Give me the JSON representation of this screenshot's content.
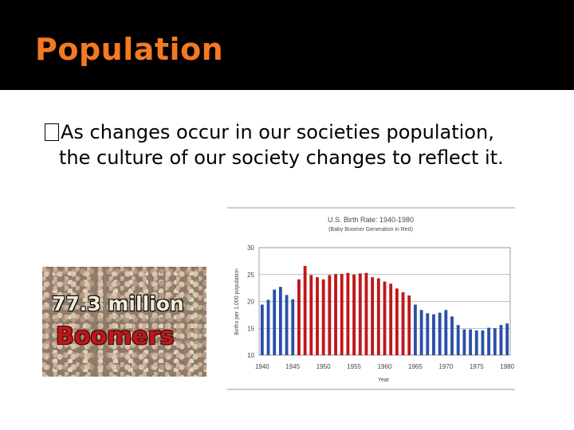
{
  "slide": {
    "title": "Population",
    "bullet_line1": "As changes occur in our societies population,",
    "bullet_line2": "the culture of our society changes to reflect it."
  },
  "image": {
    "line1": "77.3 million",
    "line2": "Boomers"
  },
  "colors": {
    "title": "#f47920",
    "baby_boom": "#c0171a",
    "other_years": "#2b4fa8"
  },
  "chart_data": {
    "type": "bar",
    "title": "U.S. Birth Rate: 1940-1980",
    "subtitle": "(Baby Boomer Generation in Red)",
    "xlabel": "Year",
    "ylabel": "Births per 1,000 population",
    "ylim": [
      10,
      30
    ],
    "yticks": [
      10,
      15,
      20,
      25,
      30
    ],
    "xticks": [
      1940,
      1945,
      1950,
      1955,
      1960,
      1965,
      1970,
      1975,
      1980
    ],
    "grid": true,
    "x": [
      1940,
      1941,
      1942,
      1943,
      1944,
      1945,
      1946,
      1947,
      1948,
      1949,
      1950,
      1951,
      1952,
      1953,
      1954,
      1955,
      1956,
      1957,
      1958,
      1959,
      1960,
      1961,
      1962,
      1963,
      1964,
      1965,
      1966,
      1967,
      1968,
      1969,
      1970,
      1971,
      1972,
      1973,
      1974,
      1975,
      1976,
      1977,
      1978,
      1979,
      1980
    ],
    "values": [
      19.4,
      20.3,
      22.2,
      22.7,
      21.2,
      20.4,
      24.1,
      26.6,
      24.9,
      24.5,
      24.1,
      24.9,
      25.1,
      25.1,
      25.3,
      25.0,
      25.2,
      25.3,
      24.5,
      24.3,
      23.7,
      23.3,
      22.4,
      21.7,
      21.1,
      19.4,
      18.4,
      17.8,
      17.6,
      17.9,
      18.4,
      17.2,
      15.6,
      14.8,
      14.8,
      14.6,
      14.6,
      15.1,
      15.0,
      15.6,
      15.9
    ],
    "baby_boom_years": [
      1946,
      1964
    ]
  }
}
